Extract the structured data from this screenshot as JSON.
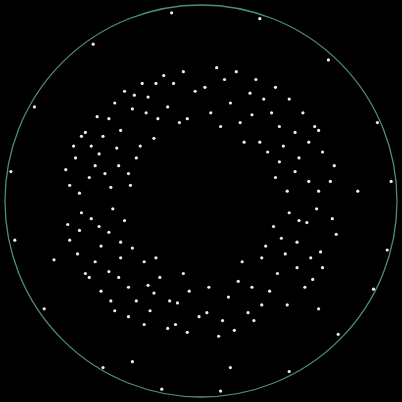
{
  "chart_data": {
    "type": "scatter",
    "marker": "circle",
    "color": "#eeeeee",
    "grid": false,
    "tick_labels": false,
    "xlim": [
      -1,
      1
    ],
    "ylim": [
      -1,
      1
    ],
    "x": [
      0.4,
      0.55,
      0.62,
      0.48,
      0.36,
      0.25,
      0.12,
      0.05,
      0.3,
      0.2,
      0.45,
      0.58,
      0.66,
      0.38,
      0.5,
      0.15,
      0.28,
      0.4,
      0.6,
      0.52,
      0.08,
      0.22,
      0.34,
      0.44,
      0.68,
      0.18,
      0.32,
      0.55,
      0.02,
      0.42,
      0.6,
      0.1,
      0.48,
      0.26,
      0.38,
      -0.42,
      -0.57,
      -0.64,
      -0.5,
      -0.35,
      -0.27,
      -0.14,
      -0.07,
      -0.31,
      -0.22,
      -0.44,
      -0.59,
      -0.67,
      -0.37,
      -0.52,
      -0.17,
      -0.3,
      -0.41,
      -0.62,
      -0.53,
      -0.09,
      -0.24,
      -0.33,
      -0.46,
      -0.69,
      -0.19,
      -0.34,
      -0.56,
      -0.03,
      -0.43,
      -0.61,
      -0.11,
      -0.49,
      -0.28,
      -0.39,
      -0.65,
      -0.54,
      -0.47,
      -0.23,
      -0.36,
      -0.41,
      -0.56,
      -0.63,
      -0.47,
      -0.37,
      -0.26,
      -0.13,
      -0.06,
      -0.29,
      -0.21,
      -0.46,
      -0.57,
      -0.68,
      -0.39,
      -0.51,
      -0.16,
      -0.29,
      -0.42,
      -0.61,
      -0.51,
      -0.07,
      -0.23,
      -0.35,
      -0.45,
      -0.67,
      -0.17,
      -0.33,
      -0.54,
      -0.01,
      -0.41,
      -0.59,
      -0.09,
      -0.47,
      -0.27,
      -0.37,
      -0.24,
      -0.52,
      -0.44,
      -0.12,
      -0.62,
      0.41,
      0.54,
      0.61,
      0.49,
      0.35,
      0.24,
      0.11,
      0.04,
      0.31,
      0.19,
      0.44,
      0.57,
      0.67,
      0.37,
      0.49,
      0.14,
      0.27,
      0.39,
      0.59,
      0.53,
      0.09,
      0.21,
      0.33,
      0.45,
      0.69,
      0.17,
      0.31,
      0.56,
      0.03,
      0.43,
      0.62,
      0.26,
      0.5,
      0.97,
      0.95,
      0.88,
      0.7,
      0.45,
      0.1,
      -0.2,
      -0.5,
      -0.8,
      -0.95,
      -0.97,
      -0.85,
      -0.55,
      -0.15,
      0.3,
      0.65,
      0.9,
      0.8,
      -0.75,
      0.6,
      0.15,
      -0.35
    ],
    "values": [
      0.2,
      0.1,
      0.25,
      0.35,
      0.45,
      0.55,
      0.62,
      0.45,
      0.3,
      0.4,
      0.52,
      0.38,
      0.1,
      0.12,
      0.22,
      0.5,
      0.62,
      0.38,
      0.05,
      0.45,
      0.68,
      0.3,
      0.25,
      0.05,
      0.18,
      0.66,
      0.52,
      0.3,
      0.58,
      0.28,
      0.36,
      0.38,
      0.15,
      0.44,
      0.58,
      0.18,
      0.12,
      0.22,
      0.33,
      0.47,
      0.53,
      0.6,
      0.42,
      0.28,
      0.42,
      0.5,
      0.35,
      0.08,
      0.14,
      0.24,
      0.48,
      0.6,
      0.36,
      0.04,
      0.43,
      0.66,
      0.32,
      0.22,
      0.07,
      0.16,
      0.64,
      0.54,
      0.28,
      0.56,
      0.27,
      0.33,
      0.4,
      0.14,
      0.45,
      0.56,
      0.28,
      0.18,
      0.42,
      0.6,
      0.08,
      -0.21,
      -0.09,
      -0.27,
      -0.36,
      -0.44,
      -0.56,
      -0.63,
      -0.46,
      -0.31,
      -0.39,
      -0.51,
      -0.39,
      -0.12,
      -0.1,
      -0.23,
      -0.51,
      -0.63,
      -0.39,
      -0.06,
      -0.46,
      -0.67,
      -0.29,
      -0.24,
      -0.04,
      -0.2,
      -0.65,
      -0.51,
      -0.31,
      -0.59,
      -0.29,
      -0.37,
      -0.37,
      -0.16,
      -0.43,
      -0.59,
      -0.47,
      -0.13,
      -0.56,
      -0.52,
      -0.15,
      -0.19,
      -0.11,
      -0.26,
      -0.34,
      -0.46,
      -0.57,
      -0.61,
      -0.44,
      -0.29,
      -0.41,
      -0.53,
      -0.4,
      -0.09,
      -0.13,
      -0.21,
      -0.49,
      -0.61,
      -0.37,
      -0.04,
      -0.44,
      -0.69,
      -0.31,
      -0.23,
      -0.06,
      -0.17,
      -0.66,
      -0.53,
      -0.29,
      -0.57,
      -0.27,
      -0.34,
      -0.44,
      -0.1,
      0.1,
      -0.25,
      -0.45,
      -0.68,
      -0.87,
      -0.97,
      -0.96,
      -0.85,
      -0.55,
      -0.2,
      0.15,
      0.48,
      0.8,
      0.96,
      0.93,
      0.72,
      0.4,
      0.05,
      -0.3,
      -0.55,
      -0.85,
      -0.82
    ]
  }
}
